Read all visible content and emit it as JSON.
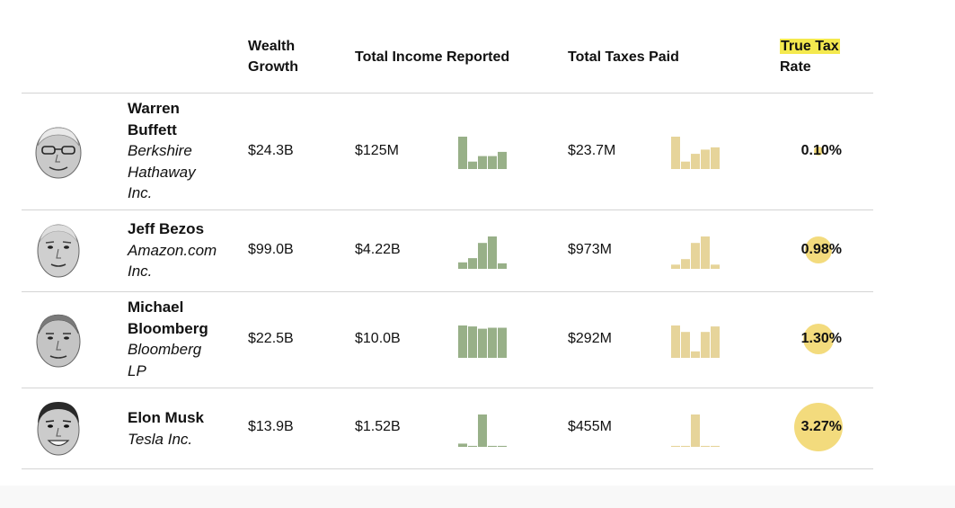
{
  "header": {
    "wealth_growth_line1": "Wealth",
    "wealth_growth_line2": "Growth",
    "total_income": "Total Income Reported",
    "total_taxes": "Total Taxes Paid",
    "true_tax_line1": "True Tax",
    "true_tax_line2": "Rate"
  },
  "colors": {
    "income_bars": "#98b088",
    "tax_bars": "#e6d49a",
    "rate_circle": "#f3db7d",
    "highlight": "#f4e94e"
  },
  "rows": [
    {
      "name_line1": "Warren",
      "name_line2": "Buffett",
      "company_line1": "Berkshire",
      "company_line2": "Hathaway",
      "company_line3": "Inc.",
      "wealth_growth": "$24.3B",
      "income": "$125M",
      "taxes": "$23.7M",
      "rate": "0.10%",
      "face_icon": "warren-buffett-portrait"
    },
    {
      "name_line1": "Jeff Bezos",
      "company_line1": "Amazon.com",
      "company_line2": "Inc.",
      "wealth_growth": "$99.0B",
      "income": "$4.22B",
      "taxes": "$973M",
      "rate": "0.98%",
      "face_icon": "jeff-bezos-portrait"
    },
    {
      "name_line1": "Michael",
      "name_line2": "Bloomberg",
      "company_line1": "Bloomberg",
      "company_line2": "LP",
      "wealth_growth": "$22.5B",
      "income": "$10.0B",
      "taxes": "$292M",
      "rate": "1.30%",
      "face_icon": "michael-bloomberg-portrait"
    },
    {
      "name_line1": "Elon Musk",
      "company_line1": "Tesla Inc.",
      "wealth_growth": "$13.9B",
      "income": "$1.52B",
      "taxes": "$455M",
      "rate": "3.27%",
      "face_icon": "elon-musk-portrait"
    }
  ],
  "chart_data": {
    "type": "table",
    "columns": [
      "Wealth Growth",
      "Total Income Reported",
      "Total Taxes Paid",
      "True Tax Rate"
    ],
    "people": [
      "Warren Buffett",
      "Jeff Bezos",
      "Michael Bloomberg",
      "Elon Musk"
    ],
    "companies": [
      "Berkshire Hathaway Inc.",
      "Amazon.com Inc.",
      "Bloomberg LP",
      "Tesla Inc."
    ],
    "wealth_growth": [
      "$24.3B",
      "$99.0B",
      "$22.5B",
      "$13.9B"
    ],
    "income": [
      "$125M",
      "$4.22B",
      "$10.0B",
      "$1.52B"
    ],
    "taxes": [
      "$23.7M",
      "$973M",
      "$292M",
      "$455M"
    ],
    "true_tax_rate_pct": [
      0.1,
      0.98,
      1.3,
      3.27
    ],
    "income_sparklines": [
      [
        1.0,
        0.23,
        0.4,
        0.4,
        0.53
      ],
      [
        0.2,
        0.33,
        0.8,
        1.0,
        0.17
      ],
      [
        1.0,
        0.97,
        0.9,
        0.93,
        0.93
      ],
      [
        0.1,
        0.03,
        1.0,
        0.03,
        0.03
      ]
    ],
    "tax_sparklines": [
      [
        1.0,
        0.23,
        0.47,
        0.6,
        0.67
      ],
      [
        0.13,
        0.3,
        0.8,
        1.0,
        0.13
      ],
      [
        1.0,
        0.8,
        0.2,
        0.8,
        0.97
      ],
      [
        0.03,
        0.03,
        1.0,
        0.03,
        0.03
      ]
    ]
  }
}
